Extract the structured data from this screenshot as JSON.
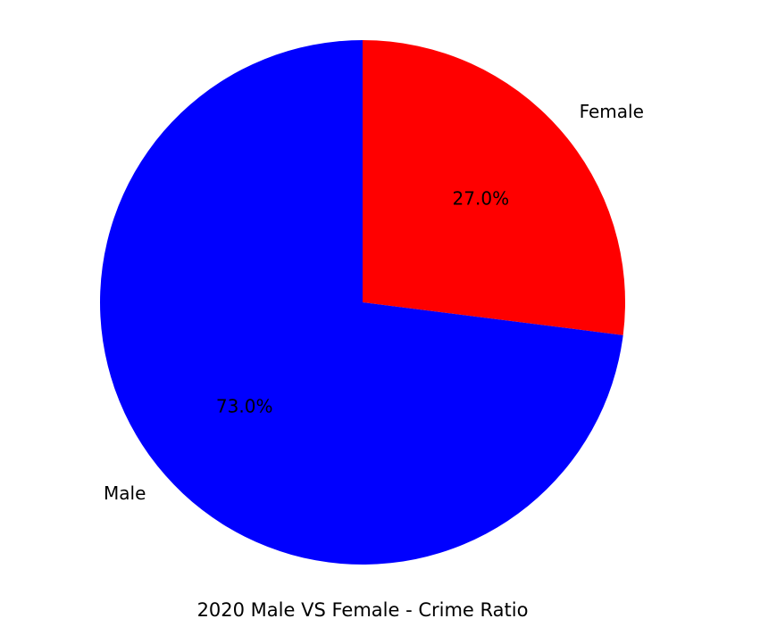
{
  "chart_data": {
    "type": "pie",
    "categories": [
      "Female",
      "Male"
    ],
    "values": [
      27.0,
      73.0
    ],
    "percent_labels": [
      "27.0%",
      "73.0%"
    ],
    "colors": [
      "#ff0000",
      "#0000ff"
    ],
    "start_angle_deg": 90,
    "direction": "clockwise",
    "title": "2020 Male VS Female - Crime Ratio",
    "legend": "none"
  }
}
